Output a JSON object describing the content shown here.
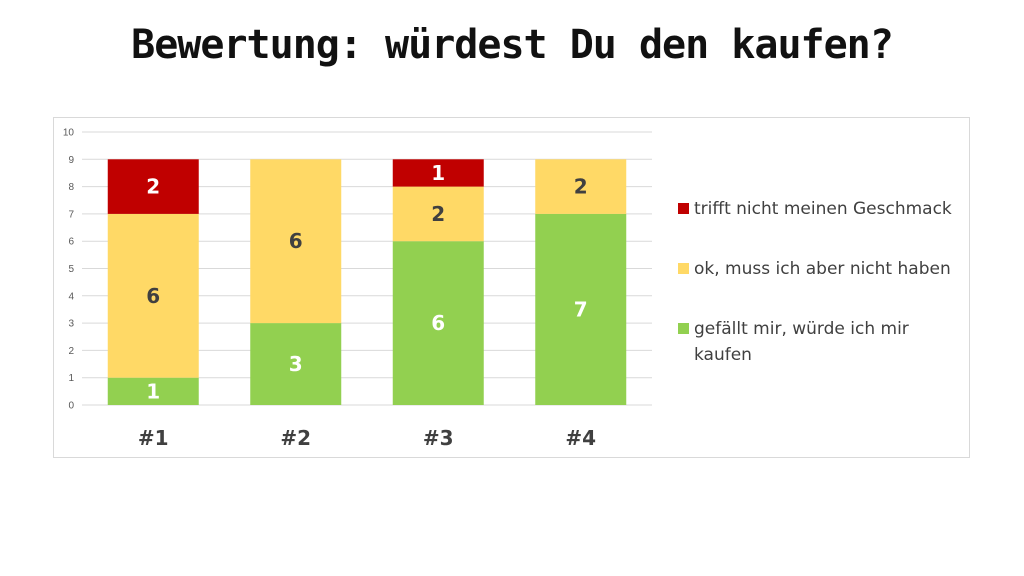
{
  "title": "Bewertung: würdest Du den kaufen?",
  "chart_data": {
    "type": "bar",
    "stacked": true,
    "categories": [
      "#1",
      "#2",
      "#3",
      "#4"
    ],
    "series": [
      {
        "name": "gefällt mir, würde ich mir kaufen",
        "values": [
          1,
          3,
          6,
          7
        ],
        "color": "#92D050",
        "label_color": "#ffffff"
      },
      {
        "name": "ok, muss ich aber nicht haben",
        "values": [
          6,
          6,
          2,
          2
        ],
        "color": "#FFD966",
        "label_color": "#404040"
      },
      {
        "name": "trifft nicht meinen Geschmack",
        "values": [
          2,
          0,
          1,
          0
        ],
        "color": "#C00000",
        "label_color": "#ffffff"
      }
    ],
    "legend_order": [
      2,
      1,
      0
    ],
    "legend_lines": [
      [
        "trifft nicht meinen Geschmack"
      ],
      [
        "ok, muss ich aber nicht haben"
      ],
      [
        "gefällt mir, würde ich mir",
        "kaufen"
      ]
    ],
    "ylim": [
      0,
      10
    ],
    "yticks": [
      "0",
      "1",
      "2",
      "3",
      "4",
      "5",
      "6",
      "7",
      "8",
      "9",
      "10"
    ],
    "grid": true,
    "legend_position": "right"
  }
}
